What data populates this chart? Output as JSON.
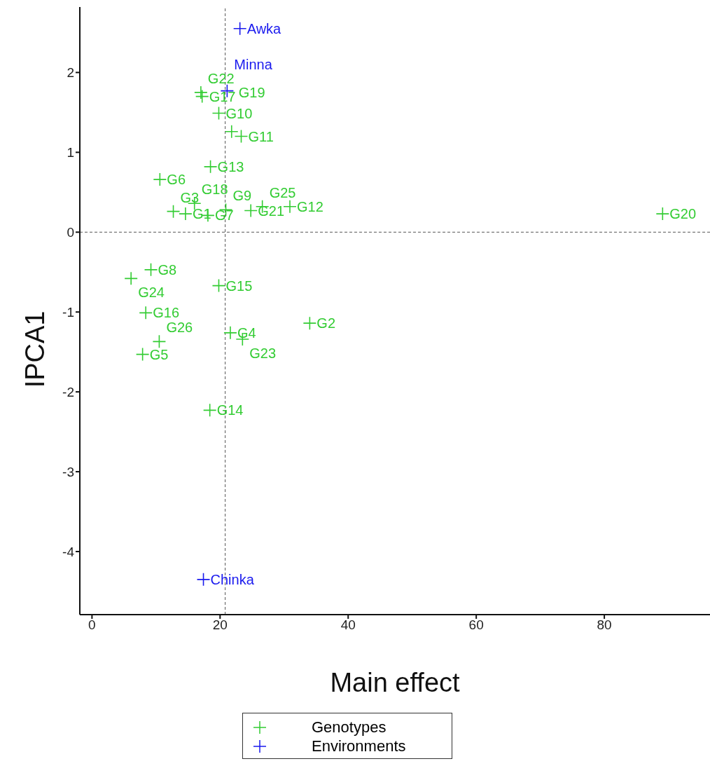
{
  "chart_data": {
    "type": "scatter",
    "xlabel": "Main effect",
    "ylabel": "IPCA1",
    "xlim": [
      -1.9,
      96.5
    ],
    "ylim": [
      -4.79,
      2.82
    ],
    "xticks": [
      0,
      20,
      40,
      60,
      80
    ],
    "yticks": [
      -4,
      -3,
      -2,
      -1,
      0,
      1,
      2
    ],
    "grid": false,
    "legend": "bottom",
    "marker": "cross",
    "ref_lines": [
      {
        "axis": "x",
        "value": 20.8,
        "line_style": "dashed",
        "color": "#555555"
      },
      {
        "axis": "y",
        "value": 0,
        "line_style": "dashed",
        "color": "#555555"
      }
    ],
    "series": [
      {
        "name": "Genotypes",
        "color": "#33cc33",
        "x": [
          14.6,
          34.0,
          12.7,
          21.6,
          7.9,
          10.6,
          18.1,
          9.2,
          20.9,
          19.8,
          23.3,
          30.9,
          18.5,
          18.4,
          19.8,
          8.4,
          17.2,
          16.0,
          21.8,
          89.1,
          24.8,
          17.0,
          23.5,
          6.1,
          26.6,
          10.5
        ],
        "values": [
          0.23,
          -1.14,
          0.26,
          -1.26,
          -1.53,
          0.66,
          0.21,
          -0.47,
          0.28,
          1.49,
          1.2,
          0.32,
          0.82,
          -2.23,
          -0.67,
          -1.01,
          1.7,
          0.36,
          1.26,
          0.23,
          0.27,
          1.75,
          -1.34,
          -0.58,
          0.32,
          -1.37
        ]
      },
      {
        "name": "Environments",
        "color": "#1a1aee",
        "x": [
          23.1,
          21.1,
          17.4
        ],
        "values": [
          2.55,
          1.77,
          -4.35
        ]
      }
    ],
    "annotations": [
      {
        "text": "G1",
        "x": 14.6,
        "y": 0.23
      },
      {
        "text": "G2",
        "x": 34.0,
        "y": -1.14
      },
      {
        "text": "G3",
        "x": 12.7,
        "y": 0.26
      },
      {
        "text": "G4",
        "x": 21.6,
        "y": -1.26
      },
      {
        "text": "G5",
        "x": 7.9,
        "y": -1.53
      },
      {
        "text": "G6",
        "x": 10.6,
        "y": 0.66
      },
      {
        "text": "G7",
        "x": 18.1,
        "y": 0.21
      },
      {
        "text": "G8",
        "x": 9.2,
        "y": -0.47
      },
      {
        "text": "G9",
        "x": 20.9,
        "y": 0.28
      },
      {
        "text": "G10",
        "x": 19.8,
        "y": 1.49
      },
      {
        "text": "G11",
        "x": 23.3,
        "y": 1.2
      },
      {
        "text": "G12",
        "x": 30.9,
        "y": 0.32
      },
      {
        "text": "G13",
        "x": 18.5,
        "y": 0.82
      },
      {
        "text": "G14",
        "x": 18.4,
        "y": -2.23
      },
      {
        "text": "G15",
        "x": 19.8,
        "y": -0.67
      },
      {
        "text": "G16",
        "x": 8.4,
        "y": -1.01
      },
      {
        "text": "G17",
        "x": 17.2,
        "y": 1.7
      },
      {
        "text": "G18",
        "x": 16.0,
        "y": 0.36
      },
      {
        "text": "G19",
        "x": 21.8,
        "y": 1.26
      },
      {
        "text": "G20",
        "x": 89.1,
        "y": 0.23
      },
      {
        "text": "G21",
        "x": 24.8,
        "y": 0.27
      },
      {
        "text": "G22",
        "x": 17.0,
        "y": 1.75
      },
      {
        "text": "G23",
        "x": 23.5,
        "y": -1.34
      },
      {
        "text": "G24",
        "x": 6.1,
        "y": -0.58
      },
      {
        "text": "G25",
        "x": 26.6,
        "y": 0.32
      },
      {
        "text": "G26",
        "x": 10.5,
        "y": -1.37
      },
      {
        "text": "Awka",
        "x": 23.1,
        "y": 2.55
      },
      {
        "text": "Minna",
        "x": 21.1,
        "y": 1.77
      },
      {
        "text": "Chinka",
        "x": 17.4,
        "y": -4.35
      }
    ]
  }
}
